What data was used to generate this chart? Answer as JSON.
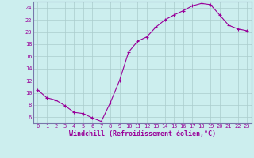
{
  "x": [
    0,
    1,
    2,
    3,
    4,
    5,
    6,
    7,
    8,
    9,
    10,
    11,
    12,
    13,
    14,
    15,
    16,
    17,
    18,
    19,
    20,
    21,
    22,
    23
  ],
  "y": [
    10.5,
    9.2,
    8.8,
    7.9,
    6.8,
    6.6,
    5.9,
    5.3,
    8.4,
    12.0,
    16.7,
    18.5,
    19.2,
    20.8,
    22.0,
    22.8,
    23.5,
    24.3,
    24.7,
    24.5,
    22.8,
    21.1,
    20.5,
    20.2
  ],
  "line_color": "#990099",
  "bg_color": "#cceeee",
  "grid_color": "#aacccc",
  "xlabel": "Windchill (Refroidissement éolien,°C)",
  "tick_color": "#990099",
  "ylim": [
    5.0,
    25.0
  ],
  "xlim": [
    -0.5,
    23.5
  ],
  "yticks": [
    6,
    8,
    10,
    12,
    14,
    16,
    18,
    20,
    22,
    24
  ],
  "xticks": [
    0,
    1,
    2,
    3,
    4,
    5,
    6,
    7,
    8,
    9,
    10,
    11,
    12,
    13,
    14,
    15,
    16,
    17,
    18,
    19,
    20,
    21,
    22,
    23
  ],
  "xtick_labels": [
    "0",
    "1",
    "2",
    "3",
    "4",
    "5",
    "6",
    "7",
    "8",
    "9",
    "10",
    "11",
    "12",
    "13",
    "14",
    "15",
    "16",
    "17",
    "18",
    "19",
    "20",
    "21",
    "22",
    "23"
  ],
  "ytick_labels": [
    "6",
    "8",
    "10",
    "12",
    "14",
    "16",
    "18",
    "20",
    "22",
    "24"
  ],
  "axis_line_color": "#7777aa",
  "font_family": "monospace",
  "tick_fontsize": 5,
  "xlabel_fontsize": 6
}
